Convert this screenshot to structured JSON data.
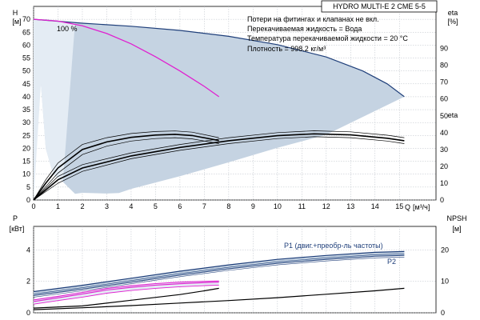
{
  "colors": {
    "envelope": "#c5d3e2",
    "envelope_light": "#e4ecf4",
    "curve_max": "#1f3f7a",
    "curve_pink": "#e020d0",
    "curve_black": "#000000",
    "grid": "#b8bec6"
  },
  "chart_data": [
    {
      "type": "line",
      "title": "HYDRO MULTI-E 2 CME 5-5",
      "ylabel": "H",
      "yunit": "[м]",
      "y2label": "eta",
      "y2unit": "[%]",
      "xlabel": "Q",
      "xunit": "[м³/ч]",
      "xlim": [
        0,
        16.5
      ],
      "ylim": [
        0,
        75
      ],
      "y2lim": [
        0,
        115
      ],
      "xticks": [
        0,
        1,
        2,
        3,
        4,
        5,
        6,
        7,
        8,
        9,
        10,
        11,
        12,
        13,
        14,
        15
      ],
      "yticks": [
        0,
        5,
        10,
        15,
        20,
        25,
        30,
        35,
        40,
        45,
        50,
        55,
        60,
        65,
        70
      ],
      "y2ticks": [
        0,
        10,
        20,
        30,
        40,
        50,
        60,
        70,
        80,
        90
      ],
      "grid": true,
      "notes": [
        "Потери на фитингах и клапанах не вкл.",
        "Перекачиваемая жидкость = Вода",
        "Температура перекачиваемой жидкости = 20 °C",
        "Плотность = 998.2 кг/м³"
      ],
      "curve_label": "100 %",
      "envelope": {
        "x": [
          0,
          0.5,
          1.0,
          1.2,
          1.5,
          1.6,
          2.5,
          4,
          6,
          8,
          10,
          12,
          13.5,
          14.5,
          15.2,
          12,
          10,
          8,
          6,
          4,
          3.5,
          3,
          2,
          1.7,
          1.2,
          0.8,
          0.5,
          0.3
        ],
        "y": [
          70,
          70,
          69.5,
          69.2,
          68.9,
          68.8,
          68.3,
          67.3,
          65.7,
          63.4,
          60.2,
          55.4,
          50,
          45,
          40,
          25.3,
          20.2,
          14.6,
          9.2,
          4.3,
          2.7,
          2.5,
          2.8,
          2.4,
          7,
          10,
          20,
          45
        ]
      },
      "series": [
        {
          "role": "head-max",
          "x": [
            0,
            2,
            4,
            6,
            8,
            10,
            12,
            13.5,
            14.5,
            15.2
          ],
          "values": [
            70,
            68.5,
            67.3,
            65.7,
            63.4,
            60.2,
            55.4,
            50,
            45,
            40
          ]
        },
        {
          "role": "head-100",
          "x": [
            0,
            1,
            2,
            3,
            4,
            5,
            6,
            7,
            7.6
          ],
          "values": [
            70,
            69.3,
            67.5,
            64.5,
            60.5,
            55.5,
            50,
            44,
            40
          ]
        },
        {
          "role": "eta-band-upper",
          "axis": "y2",
          "x": [
            0,
            0.5,
            1,
            2,
            3,
            4,
            5,
            5.8,
            6.5,
            7.6
          ],
          "values": [
            0,
            12,
            22,
            33,
            37,
            39.5,
            40.7,
            41,
            40.3,
            37
          ]
        },
        {
          "role": "eta-band-lower",
          "axis": "y2",
          "x": [
            0,
            0.5,
            1,
            2,
            3,
            4,
            5,
            5.8,
            6.5,
            7.6
          ],
          "values": [
            0,
            8,
            16,
            27,
            32,
            35,
            36.5,
            37,
            36.3,
            33.5
          ]
        },
        {
          "role": "eta-100",
          "axis": "y2",
          "x": [
            0,
            0.5,
            1,
            2,
            3,
            4,
            5,
            5.8,
            6.5,
            7.6
          ],
          "values": [
            0,
            10,
            19,
            30,
            34.5,
            37.2,
            38.6,
            39,
            38.3,
            35.3
          ]
        },
        {
          "role": "eta-max-upper",
          "axis": "y2",
          "x": [
            0,
            1,
            2,
            4,
            6,
            8,
            10,
            11.5,
            13,
            14.5,
            15.2
          ],
          "values": [
            0,
            14,
            21,
            28,
            33,
            37,
            40,
            41.1,
            40.5,
            38.5,
            37
          ]
        },
        {
          "role": "eta-max-lower",
          "axis": "y2",
          "x": [
            0,
            1,
            2,
            4,
            6,
            8,
            10,
            11.5,
            13,
            14.5,
            15.2
          ],
          "values": [
            0,
            10,
            17,
            24.5,
            29.5,
            33.5,
            36.5,
            37.6,
            37,
            35,
            33.5
          ]
        },
        {
          "role": "eta-max",
          "axis": "y2",
          "x": [
            0,
            1,
            2,
            4,
            6,
            8,
            10,
            11.5,
            13,
            14.5,
            15.2
          ],
          "values": [
            0,
            12,
            19,
            26.2,
            31.2,
            35.2,
            38.2,
            39.3,
            38.7,
            36.7,
            35.2
          ]
        }
      ]
    },
    {
      "type": "line",
      "ylabel": "P",
      "yunit": "[кВт]",
      "y2label": "NPSH",
      "y2unit": "[м]",
      "xlim": [
        0,
        16.5
      ],
      "ylim": [
        0,
        5.5
      ],
      "y2lim": [
        0,
        27.5
      ],
      "yticks": [
        0,
        2,
        4
      ],
      "y2ticks": [
        0,
        10,
        20
      ],
      "grid": true,
      "labels": {
        "p1": "P1 (двиг.+преобр-ль частоты)",
        "p2": "P2"
      },
      "series": [
        {
          "role": "p1-max",
          "x": [
            0,
            2,
            4,
            6,
            8,
            10,
            12,
            14,
            15.2
          ],
          "values": [
            1.35,
            1.75,
            2.2,
            2.65,
            3.05,
            3.4,
            3.65,
            3.85,
            3.9
          ]
        },
        {
          "role": "p1-band-upper",
          "x": [
            0,
            2,
            4,
            6,
            8,
            10,
            12,
            14,
            15.2
          ],
          "values": [
            1.2,
            1.6,
            2.05,
            2.5,
            2.9,
            3.25,
            3.5,
            3.7,
            3.75
          ]
        },
        {
          "role": "p1-band-lower",
          "x": [
            0,
            2,
            4,
            6,
            8,
            10,
            12,
            14,
            15.2
          ],
          "values": [
            1.0,
            1.4,
            1.85,
            2.3,
            2.7,
            3.05,
            3.3,
            3.5,
            3.55
          ]
        },
        {
          "role": "p2-max",
          "x": [
            0,
            2,
            4,
            6,
            8,
            10,
            12,
            14,
            15.2
          ],
          "values": [
            1.1,
            1.5,
            1.95,
            2.4,
            2.8,
            3.15,
            3.4,
            3.6,
            3.65
          ]
        },
        {
          "role": "p1-100",
          "x": [
            0,
            1,
            2,
            3,
            4,
            5,
            6,
            7,
            7.6
          ],
          "values": [
            0.72,
            0.95,
            1.2,
            1.45,
            1.62,
            1.76,
            1.85,
            1.92,
            1.95
          ]
        },
        {
          "role": "p1-100-upper",
          "x": [
            0,
            1,
            2,
            3,
            4,
            5,
            6,
            7,
            7.6
          ],
          "values": [
            0.82,
            1.05,
            1.3,
            1.55,
            1.72,
            1.86,
            1.95,
            2.0,
            2.02
          ]
        },
        {
          "role": "p2-100",
          "x": [
            0,
            1,
            2,
            3,
            4,
            5,
            6,
            7,
            7.6
          ],
          "values": [
            0.55,
            0.78,
            1.0,
            1.25,
            1.42,
            1.56,
            1.66,
            1.73,
            1.76
          ]
        },
        {
          "role": "npsh-100",
          "axis": "y2",
          "x": [
            0,
            2,
            4,
            6,
            7,
            7.6
          ],
          "values": [
            1.5,
            2.2,
            4.0,
            5.8,
            7.0,
            7.8
          ]
        },
        {
          "role": "npsh-max",
          "axis": "y2",
          "x": [
            0,
            2,
            4,
            6,
            8,
            10,
            12,
            14,
            15.2
          ],
          "values": [
            1.0,
            1.6,
            2.3,
            3.1,
            3.9,
            4.8,
            5.9,
            7.0,
            7.8
          ]
        }
      ]
    }
  ]
}
